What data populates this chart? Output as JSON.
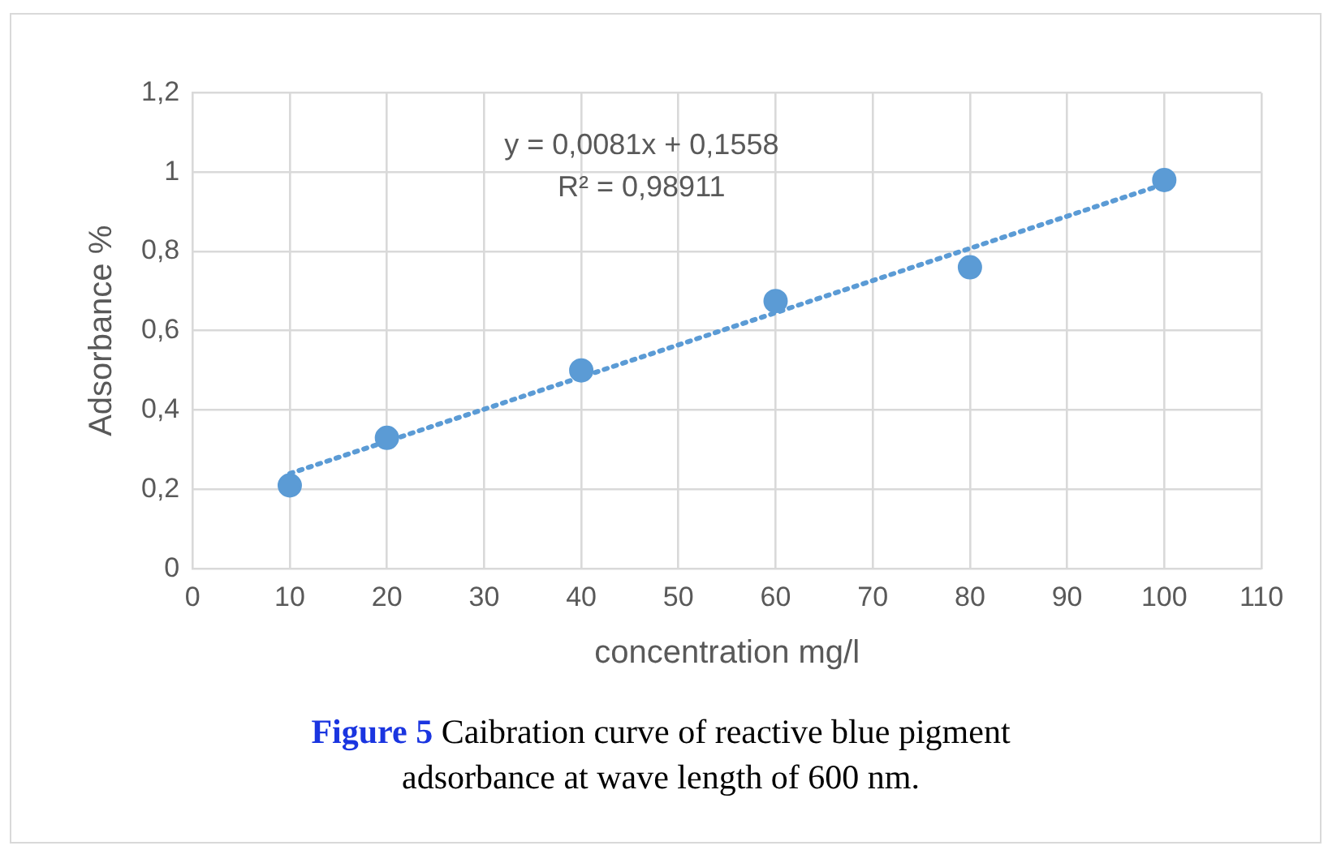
{
  "chart_data": {
    "type": "scatter",
    "xlabel": "concentration mg/l",
    "ylabel": "Adsorbance %",
    "series": [
      {
        "type": "scatter",
        "color": "#5b9bd5",
        "x": [
          10,
          20,
          40,
          60,
          80,
          100
        ],
        "values": [
          0.21,
          0.33,
          0.5,
          0.675,
          0.76,
          0.98
        ],
        "marker": "circle"
      },
      {
        "type": "line",
        "color": "#5b9bd5",
        "x": [
          10,
          100
        ],
        "values": [
          0.24,
          0.97
        ],
        "line_style": "dotted",
        "marker": "none"
      }
    ],
    "xlim": [
      0,
      110
    ],
    "xticks": [
      0,
      10,
      20,
      30,
      40,
      50,
      60,
      70,
      80,
      90,
      100,
      110
    ],
    "ylim": [
      0,
      1.2
    ],
    "yticks": [
      0,
      {
        "value": 0.2,
        "label": "0,2"
      },
      {
        "value": 0.4,
        "label": "0,4"
      },
      {
        "value": 0.6,
        "label": "0,6"
      },
      {
        "value": 0.8,
        "label": "0,8"
      },
      1,
      {
        "value": 1.2,
        "label": "1,2"
      }
    ],
    "grid": true,
    "legend": false,
    "annotations": [
      "y = 0,0081x + 0,1558",
      "R² = 0,98911",
      "Figure 5",
      "Caibration curve of reactive blue pigment adsorbance at wave length of 600 nm."
    ]
  }
}
